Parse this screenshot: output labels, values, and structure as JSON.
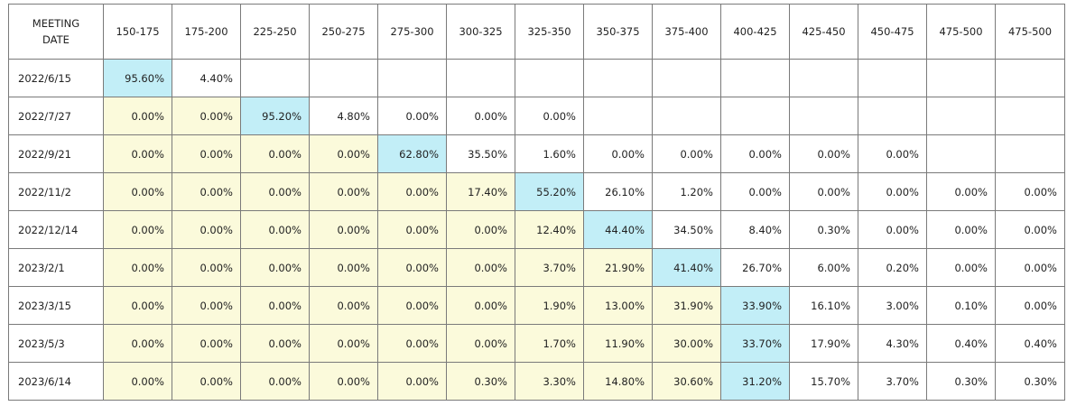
{
  "table": {
    "header_date_line1": "MEETING",
    "header_date_line2": "DATE",
    "columns": [
      "150-175",
      "175-200",
      "225-250",
      "250-275",
      "275-300",
      "300-325",
      "325-350",
      "350-375",
      "375-400",
      "400-425",
      "425-450",
      "450-475",
      "475-500",
      "475-500"
    ],
    "rows": [
      {
        "date": "2022/6/15",
        "cells": [
          {
            "v": "95.60%",
            "c": "b"
          },
          {
            "v": "4.40%",
            "c": "w"
          },
          {
            "v": "",
            "c": "w"
          },
          {
            "v": "",
            "c": "w"
          },
          {
            "v": "",
            "c": "w"
          },
          {
            "v": "",
            "c": "w"
          },
          {
            "v": "",
            "c": "w"
          },
          {
            "v": "",
            "c": "w"
          },
          {
            "v": "",
            "c": "w"
          },
          {
            "v": "",
            "c": "w"
          },
          {
            "v": "",
            "c": "w"
          },
          {
            "v": "",
            "c": "w"
          },
          {
            "v": "",
            "c": "w"
          },
          {
            "v": "",
            "c": "w"
          }
        ]
      },
      {
        "date": "2022/7/27",
        "cells": [
          {
            "v": "0.00%",
            "c": "y"
          },
          {
            "v": "0.00%",
            "c": "y"
          },
          {
            "v": "95.20%",
            "c": "b"
          },
          {
            "v": "4.80%",
            "c": "w"
          },
          {
            "v": "0.00%",
            "c": "w"
          },
          {
            "v": "0.00%",
            "c": "w"
          },
          {
            "v": "0.00%",
            "c": "w"
          },
          {
            "v": "",
            "c": "w"
          },
          {
            "v": "",
            "c": "w"
          },
          {
            "v": "",
            "c": "w"
          },
          {
            "v": "",
            "c": "w"
          },
          {
            "v": "",
            "c": "w"
          },
          {
            "v": "",
            "c": "w"
          },
          {
            "v": "",
            "c": "w"
          }
        ]
      },
      {
        "date": "2022/9/21",
        "cells": [
          {
            "v": "0.00%",
            "c": "y"
          },
          {
            "v": "0.00%",
            "c": "y"
          },
          {
            "v": "0.00%",
            "c": "y"
          },
          {
            "v": "0.00%",
            "c": "y"
          },
          {
            "v": "62.80%",
            "c": "b"
          },
          {
            "v": "35.50%",
            "c": "w"
          },
          {
            "v": "1.60%",
            "c": "w"
          },
          {
            "v": "0.00%",
            "c": "w"
          },
          {
            "v": "0.00%",
            "c": "w"
          },
          {
            "v": "0.00%",
            "c": "w"
          },
          {
            "v": "0.00%",
            "c": "w"
          },
          {
            "v": "0.00%",
            "c": "w"
          },
          {
            "v": "",
            "c": "w"
          },
          {
            "v": "",
            "c": "w"
          }
        ]
      },
      {
        "date": "2022/11/2",
        "cells": [
          {
            "v": "0.00%",
            "c": "y"
          },
          {
            "v": "0.00%",
            "c": "y"
          },
          {
            "v": "0.00%",
            "c": "y"
          },
          {
            "v": "0.00%",
            "c": "y"
          },
          {
            "v": "0.00%",
            "c": "y"
          },
          {
            "v": "17.40%",
            "c": "y"
          },
          {
            "v": "55.20%",
            "c": "b"
          },
          {
            "v": "26.10%",
            "c": "w"
          },
          {
            "v": "1.20%",
            "c": "w"
          },
          {
            "v": "0.00%",
            "c": "w"
          },
          {
            "v": "0.00%",
            "c": "w"
          },
          {
            "v": "0.00%",
            "c": "w"
          },
          {
            "v": "0.00%",
            "c": "w"
          },
          {
            "v": "0.00%",
            "c": "w"
          }
        ]
      },
      {
        "date": "2022/12/14",
        "cells": [
          {
            "v": "0.00%",
            "c": "y"
          },
          {
            "v": "0.00%",
            "c": "y"
          },
          {
            "v": "0.00%",
            "c": "y"
          },
          {
            "v": "0.00%",
            "c": "y"
          },
          {
            "v": "0.00%",
            "c": "y"
          },
          {
            "v": "0.00%",
            "c": "y"
          },
          {
            "v": "12.40%",
            "c": "y"
          },
          {
            "v": "44.40%",
            "c": "b"
          },
          {
            "v": "34.50%",
            "c": "w"
          },
          {
            "v": "8.40%",
            "c": "w"
          },
          {
            "v": "0.30%",
            "c": "w"
          },
          {
            "v": "0.00%",
            "c": "w"
          },
          {
            "v": "0.00%",
            "c": "w"
          },
          {
            "v": "0.00%",
            "c": "w"
          }
        ]
      },
      {
        "date": "2023/2/1",
        "cells": [
          {
            "v": "0.00%",
            "c": "y"
          },
          {
            "v": "0.00%",
            "c": "y"
          },
          {
            "v": "0.00%",
            "c": "y"
          },
          {
            "v": "0.00%",
            "c": "y"
          },
          {
            "v": "0.00%",
            "c": "y"
          },
          {
            "v": "0.00%",
            "c": "y"
          },
          {
            "v": "3.70%",
            "c": "y"
          },
          {
            "v": "21.90%",
            "c": "y"
          },
          {
            "v": "41.40%",
            "c": "b"
          },
          {
            "v": "26.70%",
            "c": "w"
          },
          {
            "v": "6.00%",
            "c": "w"
          },
          {
            "v": "0.20%",
            "c": "w"
          },
          {
            "v": "0.00%",
            "c": "w"
          },
          {
            "v": "0.00%",
            "c": "w"
          }
        ]
      },
      {
        "date": "2023/3/15",
        "cells": [
          {
            "v": "0.00%",
            "c": "y"
          },
          {
            "v": "0.00%",
            "c": "y"
          },
          {
            "v": "0.00%",
            "c": "y"
          },
          {
            "v": "0.00%",
            "c": "y"
          },
          {
            "v": "0.00%",
            "c": "y"
          },
          {
            "v": "0.00%",
            "c": "y"
          },
          {
            "v": "1.90%",
            "c": "y"
          },
          {
            "v": "13.00%",
            "c": "y"
          },
          {
            "v": "31.90%",
            "c": "y"
          },
          {
            "v": "33.90%",
            "c": "b"
          },
          {
            "v": "16.10%",
            "c": "w"
          },
          {
            "v": "3.00%",
            "c": "w"
          },
          {
            "v": "0.10%",
            "c": "w"
          },
          {
            "v": "0.00%",
            "c": "w"
          }
        ]
      },
      {
        "date": "2023/5/3",
        "cells": [
          {
            "v": "0.00%",
            "c": "y"
          },
          {
            "v": "0.00%",
            "c": "y"
          },
          {
            "v": "0.00%",
            "c": "y"
          },
          {
            "v": "0.00%",
            "c": "y"
          },
          {
            "v": "0.00%",
            "c": "y"
          },
          {
            "v": "0.00%",
            "c": "y"
          },
          {
            "v": "1.70%",
            "c": "y"
          },
          {
            "v": "11.90%",
            "c": "y"
          },
          {
            "v": "30.00%",
            "c": "y"
          },
          {
            "v": "33.70%",
            "c": "b"
          },
          {
            "v": "17.90%",
            "c": "w"
          },
          {
            "v": "4.30%",
            "c": "w"
          },
          {
            "v": "0.40%",
            "c": "w"
          },
          {
            "v": "0.40%",
            "c": "w"
          }
        ]
      },
      {
        "date": "2023/6/14",
        "cells": [
          {
            "v": "0.00%",
            "c": "y"
          },
          {
            "v": "0.00%",
            "c": "y"
          },
          {
            "v": "0.00%",
            "c": "y"
          },
          {
            "v": "0.00%",
            "c": "y"
          },
          {
            "v": "0.00%",
            "c": "y"
          },
          {
            "v": "0.30%",
            "c": "y"
          },
          {
            "v": "3.30%",
            "c": "y"
          },
          {
            "v": "14.80%",
            "c": "y"
          },
          {
            "v": "30.60%",
            "c": "y"
          },
          {
            "v": "31.20%",
            "c": "b"
          },
          {
            "v": "15.70%",
            "c": "w"
          },
          {
            "v": "3.70%",
            "c": "w"
          },
          {
            "v": "0.30%",
            "c": "w"
          },
          {
            "v": "0.30%",
            "c": "w"
          }
        ]
      }
    ],
    "colors": {
      "highlight_blue": "#c2eef7",
      "highlight_yellow": "#fbfadb",
      "border": "#7a7a7a"
    }
  }
}
